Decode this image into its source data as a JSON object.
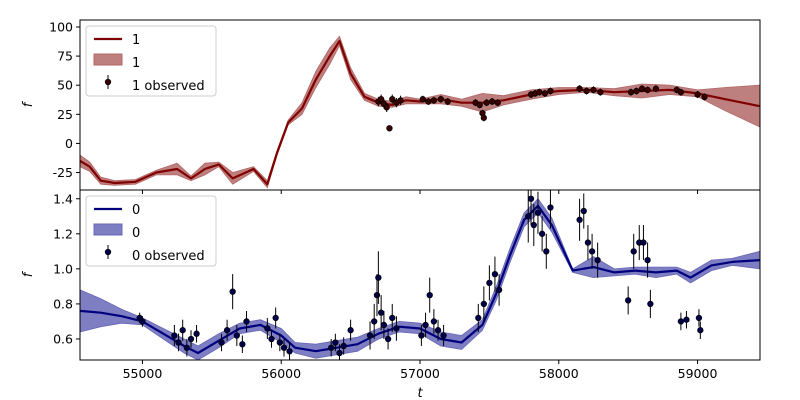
{
  "chart_data": [
    {
      "type": "line",
      "xlabel": "",
      "ylabel": "f",
      "xlim": [
        54550,
        59450
      ],
      "ylim": [
        -40,
        106
      ],
      "yticks": [
        -25,
        0,
        25,
        50,
        75,
        100
      ],
      "legend_position": "upper-left",
      "colors": {
        "line": "#800000",
        "band": "#b36868",
        "points": "#800000",
        "point_fill": "#3a0000"
      },
      "legend": [
        "1",
        "1",
        "1 observed"
      ],
      "series": [
        {
          "name": "1",
          "role": "model-mean",
          "x": [
            54550,
            54620,
            54700,
            54800,
            54950,
            55100,
            55250,
            55350,
            55450,
            55550,
            55650,
            55800,
            55900,
            55970,
            56050,
            56150,
            56250,
            56350,
            56420,
            56500,
            56600,
            56700,
            56800,
            56900,
            57000,
            57150,
            57300,
            57450,
            57600,
            57800,
            58000,
            58200,
            58400,
            58600,
            58800,
            59000,
            59200,
            59450
          ],
          "y": [
            -15,
            -20,
            -32,
            -34,
            -33,
            -25,
            -22,
            -30,
            -22,
            -18,
            -30,
            -22,
            -35,
            -8,
            18,
            30,
            55,
            75,
            88,
            60,
            40,
            35,
            33,
            37,
            36,
            38,
            35,
            35,
            37,
            42,
            45,
            46,
            44,
            45,
            46,
            43,
            38,
            32
          ]
        },
        {
          "name": "1",
          "role": "uncertainty-band",
          "x": [
            54550,
            54620,
            54700,
            54800,
            54950,
            55100,
            55250,
            55350,
            55450,
            55550,
            55650,
            55800,
            55900,
            55970,
            56050,
            56150,
            56250,
            56350,
            56420,
            56500,
            56600,
            56700,
            56800,
            56900,
            57000,
            57150,
            57300,
            57450,
            57600,
            57800,
            58000,
            58200,
            58400,
            58600,
            58800,
            59000,
            59200,
            59450
          ],
          "lower": [
            -20,
            -24,
            -35,
            -36,
            -35,
            -27,
            -27,
            -32,
            -27,
            -20,
            -35,
            -24,
            -38,
            -10,
            16,
            25,
            48,
            68,
            84,
            55,
            37,
            32,
            31,
            34,
            34,
            34,
            32,
            27,
            33,
            38,
            42,
            44,
            41,
            39,
            42,
            40,
            28,
            14
          ],
          "upper": [
            -10,
            -16,
            -29,
            -32,
            -31,
            -23,
            -17,
            -28,
            -17,
            -16,
            -25,
            -20,
            -32,
            -6,
            20,
            35,
            62,
            82,
            92,
            65,
            43,
            38,
            36,
            40,
            38,
            42,
            38,
            43,
            41,
            46,
            48,
            48,
            47,
            51,
            50,
            46,
            48,
            50
          ]
        },
        {
          "name": "1 observed",
          "role": "observations",
          "points": [
            [
              56700,
              36,
              4
            ],
            [
              56720,
              38,
              4
            ],
            [
              56740,
              34,
              4
            ],
            [
              56760,
              31,
              4
            ],
            [
              56780,
              13,
              2
            ],
            [
              56800,
              38,
              4
            ],
            [
              56830,
              35,
              4
            ],
            [
              56860,
              37,
              4
            ],
            [
              57020,
              38,
              3
            ],
            [
              57060,
              36,
              3
            ],
            [
              57100,
              37,
              3
            ],
            [
              57150,
              38,
              3
            ],
            [
              57200,
              36,
              3
            ],
            [
              57400,
              35,
              3
            ],
            [
              57430,
              33,
              3
            ],
            [
              57450,
              26,
              3
            ],
            [
              57460,
              22,
              3
            ],
            [
              57480,
              35,
              3
            ],
            [
              57520,
              36,
              3
            ],
            [
              57560,
              35,
              3
            ],
            [
              57800,
              42,
              3
            ],
            [
              57830,
              43,
              3
            ],
            [
              57860,
              44,
              3
            ],
            [
              57900,
              43,
              3
            ],
            [
              57940,
              45,
              3
            ],
            [
              58150,
              47,
              3
            ],
            [
              58200,
              45,
              3
            ],
            [
              58250,
              46,
              3
            ],
            [
              58300,
              44,
              3
            ],
            [
              58520,
              44,
              3
            ],
            [
              58560,
              45,
              3
            ],
            [
              58600,
              47,
              3
            ],
            [
              58640,
              46,
              3
            ],
            [
              58700,
              47,
              3
            ],
            [
              58850,
              46,
              3
            ],
            [
              58880,
              44,
              3
            ],
            [
              59000,
              42,
              3
            ],
            [
              59050,
              40,
              3
            ]
          ]
        }
      ]
    },
    {
      "type": "line",
      "xlabel": "t",
      "ylabel": "f",
      "xlim": [
        54550,
        59450
      ],
      "ylim": [
        0.48,
        1.45
      ],
      "xticks": [
        55000,
        56000,
        57000,
        58000,
        59000
      ],
      "yticks": [
        0.6,
        0.8,
        1.0,
        1.2,
        1.4
      ],
      "legend_position": "upper-left",
      "colors": {
        "line": "#00007f",
        "band": "#6767b8",
        "points": "#00007f",
        "point_fill": "#00004a"
      },
      "legend": [
        "0",
        "0",
        "0 observed"
      ],
      "series": [
        {
          "name": "0",
          "role": "model-mean",
          "x": [
            54550,
            54700,
            54850,
            55000,
            55150,
            55300,
            55400,
            55550,
            55700,
            55850,
            56000,
            56100,
            56250,
            56400,
            56550,
            56700,
            56850,
            57000,
            57150,
            57300,
            57450,
            57550,
            57650,
            57750,
            57850,
            57950,
            58100,
            58250,
            58400,
            58550,
            58700,
            58850,
            58950,
            59100,
            59250,
            59450
          ],
          "y": [
            0.76,
            0.75,
            0.73,
            0.7,
            0.63,
            0.56,
            0.52,
            0.59,
            0.66,
            0.68,
            0.62,
            0.55,
            0.53,
            0.55,
            0.57,
            0.63,
            0.67,
            0.66,
            0.6,
            0.58,
            0.68,
            0.86,
            1.08,
            1.28,
            1.36,
            1.25,
            0.99,
            1.01,
            0.98,
            0.99,
            0.98,
            0.99,
            0.95,
            1.02,
            1.04,
            1.05
          ]
        },
        {
          "name": "0",
          "role": "uncertainty-band",
          "x": [
            54550,
            54700,
            54850,
            55000,
            55150,
            55300,
            55400,
            55550,
            55700,
            55850,
            56000,
            56100,
            56250,
            56400,
            56550,
            56700,
            56850,
            57000,
            57150,
            57300,
            57450,
            57550,
            57650,
            57750,
            57850,
            57950,
            58100,
            58250,
            58400,
            58550,
            58700,
            58850,
            58950,
            59100,
            59250,
            59450
          ],
          "lower": [
            0.64,
            0.67,
            0.69,
            0.68,
            0.6,
            0.52,
            0.48,
            0.55,
            0.63,
            0.65,
            0.58,
            0.52,
            0.49,
            0.51,
            0.53,
            0.6,
            0.64,
            0.63,
            0.56,
            0.54,
            0.65,
            0.82,
            1.04,
            1.24,
            1.32,
            1.21,
            0.98,
            0.95,
            0.96,
            0.97,
            0.95,
            0.97,
            0.92,
            0.99,
            1.02,
            1.0
          ],
          "upper": [
            0.88,
            0.83,
            0.77,
            0.72,
            0.66,
            0.6,
            0.56,
            0.63,
            0.69,
            0.71,
            0.66,
            0.58,
            0.57,
            0.59,
            0.61,
            0.66,
            0.7,
            0.69,
            0.64,
            0.62,
            0.71,
            0.9,
            1.12,
            1.32,
            1.4,
            1.29,
            1.0,
            1.07,
            1.0,
            1.01,
            1.01,
            1.01,
            0.98,
            1.05,
            1.06,
            1.1
          ]
        },
        {
          "name": "0 observed",
          "role": "observations",
          "points": [
            [
              54980,
              0.72,
              0.03
            ],
            [
              55000,
              0.7,
              0.03
            ],
            [
              55230,
              0.62,
              0.06
            ],
            [
              55260,
              0.58,
              0.05
            ],
            [
              55290,
              0.65,
              0.06
            ],
            [
              55320,
              0.55,
              0.05
            ],
            [
              55350,
              0.6,
              0.05
            ],
            [
              55390,
              0.63,
              0.05
            ],
            [
              55570,
              0.58,
              0.05
            ],
            [
              55610,
              0.65,
              0.06
            ],
            [
              55650,
              0.87,
              0.1
            ],
            [
              55680,
              0.62,
              0.06
            ],
            [
              55720,
              0.57,
              0.05
            ],
            [
              55750,
              0.7,
              0.06
            ],
            [
              55900,
              0.66,
              0.06
            ],
            [
              55930,
              0.6,
              0.05
            ],
            [
              55960,
              0.72,
              0.06
            ],
            [
              55990,
              0.58,
              0.05
            ],
            [
              56020,
              0.55,
              0.05
            ],
            [
              56060,
              0.53,
              0.05
            ],
            [
              56360,
              0.55,
              0.05
            ],
            [
              56390,
              0.58,
              0.05
            ],
            [
              56420,
              0.52,
              0.05
            ],
            [
              56450,
              0.56,
              0.05
            ],
            [
              56500,
              0.65,
              0.06
            ],
            [
              56640,
              0.62,
              0.08
            ],
            [
              56670,
              0.7,
              0.1
            ],
            [
              56690,
              0.85,
              0.12
            ],
            [
              56700,
              0.95,
              0.15
            ],
            [
              56720,
              0.75,
              0.1
            ],
            [
              56740,
              0.68,
              0.08
            ],
            [
              56770,
              0.6,
              0.06
            ],
            [
              56800,
              0.72,
              0.08
            ],
            [
              56830,
              0.66,
              0.07
            ],
            [
              57010,
              0.62,
              0.06
            ],
            [
              57040,
              0.68,
              0.07
            ],
            [
              57070,
              0.85,
              0.1
            ],
            [
              57100,
              0.7,
              0.07
            ],
            [
              57130,
              0.65,
              0.06
            ],
            [
              57170,
              0.62,
              0.06
            ],
            [
              57420,
              0.72,
              0.08
            ],
            [
              57460,
              0.8,
              0.1
            ],
            [
              57500,
              0.92,
              0.1
            ],
            [
              57540,
              0.97,
              0.1
            ],
            [
              57570,
              0.88,
              0.09
            ],
            [
              57780,
              1.3,
              0.15
            ],
            [
              57800,
              1.4,
              0.15
            ],
            [
              57820,
              1.25,
              0.12
            ],
            [
              57850,
              1.32,
              0.12
            ],
            [
              57880,
              1.2,
              0.1
            ],
            [
              57910,
              1.1,
              0.1
            ],
            [
              57940,
              1.35,
              0.12
            ],
            [
              58150,
              1.28,
              0.12
            ],
            [
              58180,
              1.33,
              0.1
            ],
            [
              58210,
              1.15,
              0.1
            ],
            [
              58240,
              1.1,
              0.1
            ],
            [
              58280,
              1.05,
              0.1
            ],
            [
              58500,
              0.82,
              0.08
            ],
            [
              58540,
              1.1,
              0.1
            ],
            [
              58580,
              1.15,
              0.1
            ],
            [
              58610,
              1.15,
              0.1
            ],
            [
              58640,
              1.05,
              0.1
            ],
            [
              58660,
              0.8,
              0.08
            ],
            [
              58880,
              0.7,
              0.05
            ],
            [
              58920,
              0.71,
              0.05
            ],
            [
              59010,
              0.72,
              0.05
            ],
            [
              59020,
              0.65,
              0.05
            ]
          ]
        }
      ]
    }
  ]
}
